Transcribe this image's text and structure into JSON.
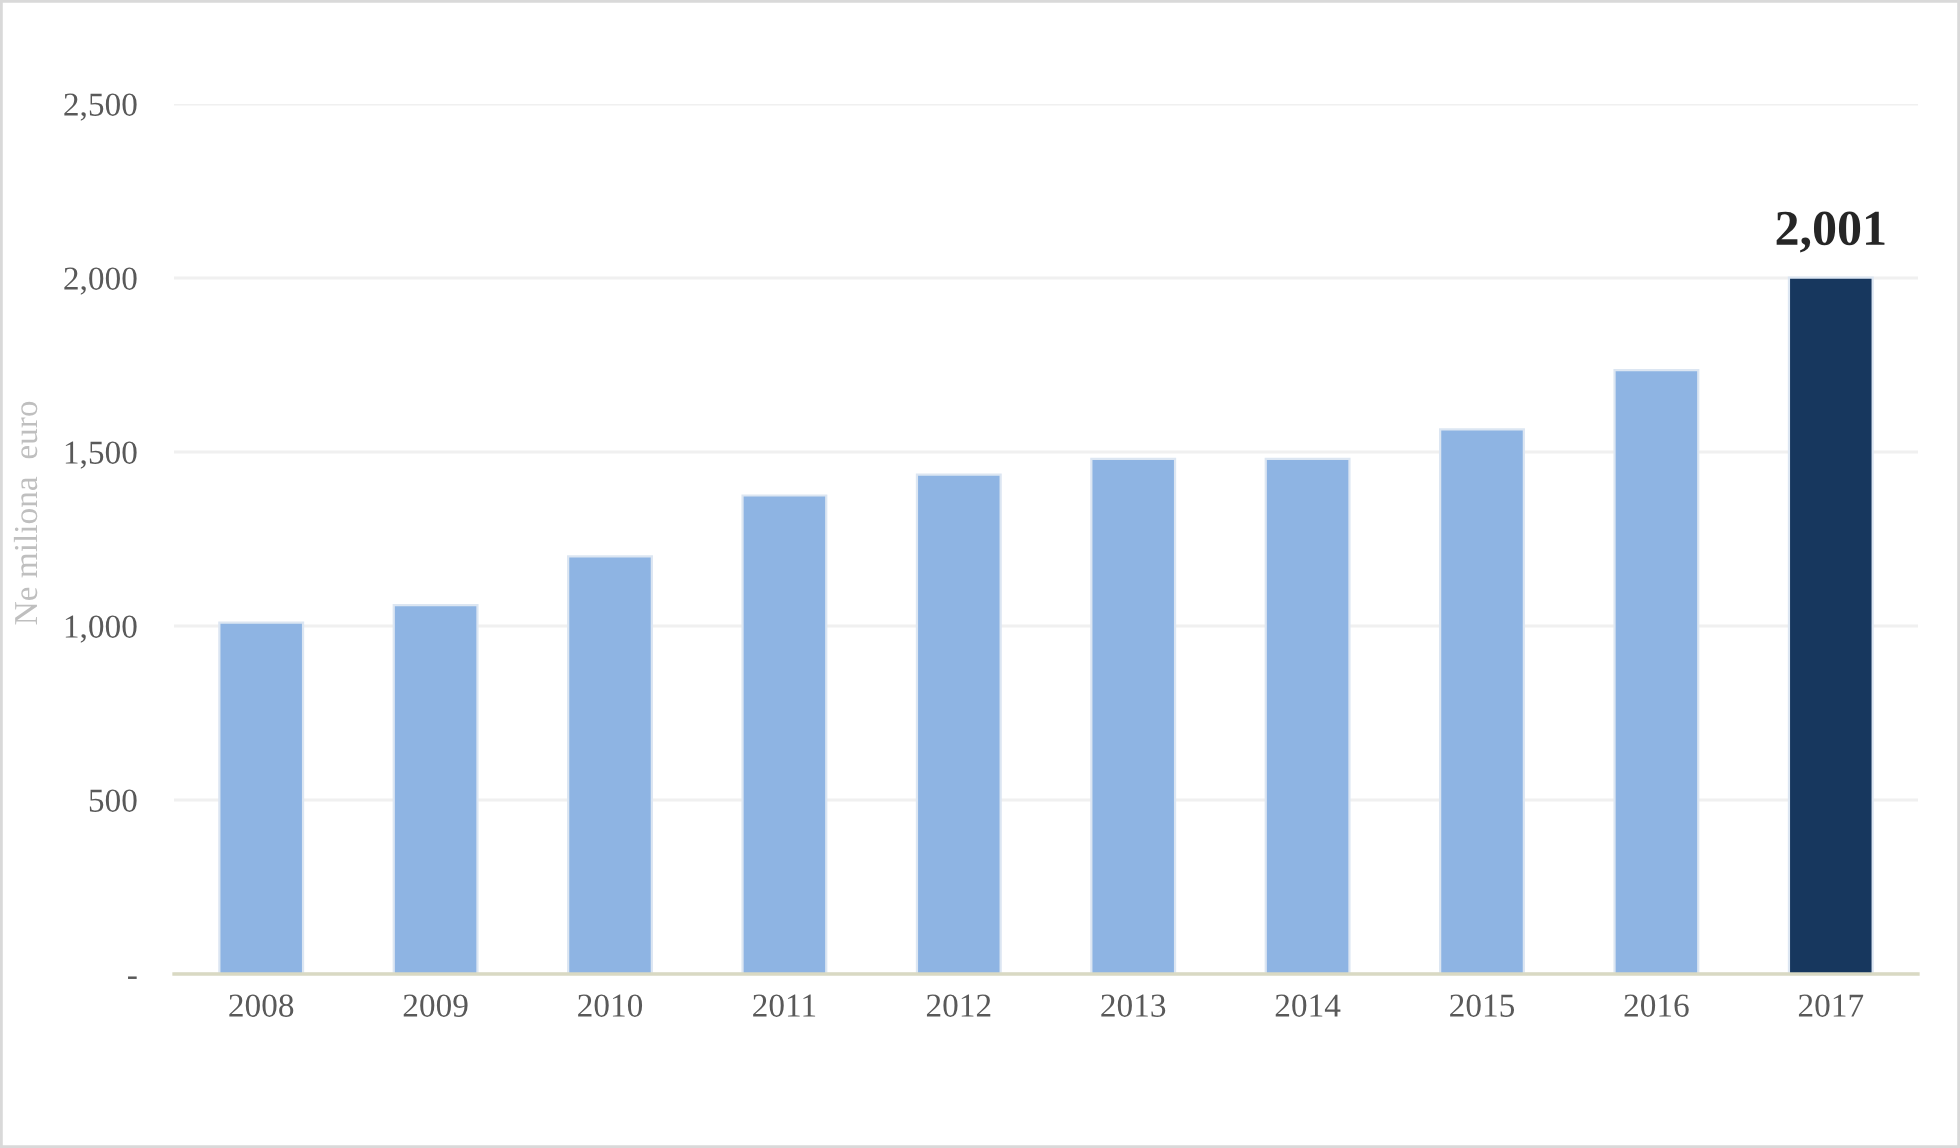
{
  "chart_data": {
    "type": "bar",
    "categories": [
      "2008",
      "2009",
      "2010",
      "2011",
      "2012",
      "2013",
      "2014",
      "2015",
      "2016",
      "2017"
    ],
    "values": [
      1010,
      1060,
      1200,
      1375,
      1435,
      1480,
      1480,
      1565,
      1735,
      2001
    ],
    "colors": [
      "#8eb4e3",
      "#8eb4e3",
      "#8eb4e3",
      "#8eb4e3",
      "#8eb4e3",
      "#8eb4e3",
      "#8eb4e3",
      "#8eb4e3",
      "#8eb4e3",
      "#17375e"
    ],
    "value_labels": [
      null,
      null,
      null,
      null,
      null,
      null,
      null,
      null,
      null,
      "2,001"
    ],
    "ylabel": "Ne miliona  euro",
    "ylim": [
      0,
      2500
    ],
    "yticks": [
      {
        "value": 0,
        "label": "-"
      },
      {
        "value": 500,
        "label": "500"
      },
      {
        "value": 1000,
        "label": "1,000"
      },
      {
        "value": 1500,
        "label": "1,500"
      },
      {
        "value": 2000,
        "label": "2,000"
      },
      {
        "value": 2500,
        "label": "2,500"
      }
    ],
    "grid": "y"
  }
}
